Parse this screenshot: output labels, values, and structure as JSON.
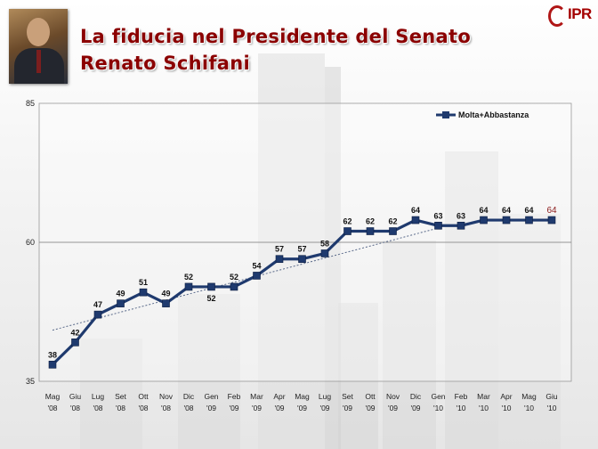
{
  "header": {
    "title_line1": "La fiducia nel Presidente del Senato",
    "title_line2": "Renato Schifani"
  },
  "logo": {
    "text": "IPR"
  },
  "colors": {
    "series": "#1f3a6e",
    "title": "#8b0000",
    "last_label": "#8b1a1a",
    "trend": "#5a6a8a"
  },
  "chart_data": {
    "type": "line",
    "title": "",
    "xlabel": "",
    "ylabel": "",
    "ylim": [
      35,
      85
    ],
    "y_ticks": [
      35,
      60,
      85
    ],
    "grid": "horizontal at 60",
    "legend_position": "top-right",
    "trendline": true,
    "categories": [
      [
        "Mag",
        "'08"
      ],
      [
        "Giu",
        "'08"
      ],
      [
        "Lug",
        "'08"
      ],
      [
        "Set",
        "'08"
      ],
      [
        "Ott",
        "'08"
      ],
      [
        "Nov",
        "'08"
      ],
      [
        "Dic",
        "'08"
      ],
      [
        "Gen",
        "'09"
      ],
      [
        "Feb",
        "'09"
      ],
      [
        "Mar",
        "'09"
      ],
      [
        "Apr",
        "'09"
      ],
      [
        "Mag",
        "'09"
      ],
      [
        "Lug",
        "'09"
      ],
      [
        "Set",
        "'09"
      ],
      [
        "Ott",
        "'09"
      ],
      [
        "Nov",
        "'09"
      ],
      [
        "Dic",
        "'09"
      ],
      [
        "Gen",
        "'10"
      ],
      [
        "Feb",
        "'10"
      ],
      [
        "Mar",
        "'10"
      ],
      [
        "Apr",
        "'10"
      ],
      [
        "Mag",
        "'10"
      ],
      [
        "Giu",
        "'10"
      ]
    ],
    "series": [
      {
        "name": "Molta+Abbastanza",
        "values": [
          38,
          42,
          47,
          49,
          51,
          49,
          52,
          52,
          52,
          54,
          57,
          57,
          58,
          62,
          62,
          62,
          64,
          63,
          63,
          64,
          64,
          64,
          64
        ]
      }
    ]
  }
}
